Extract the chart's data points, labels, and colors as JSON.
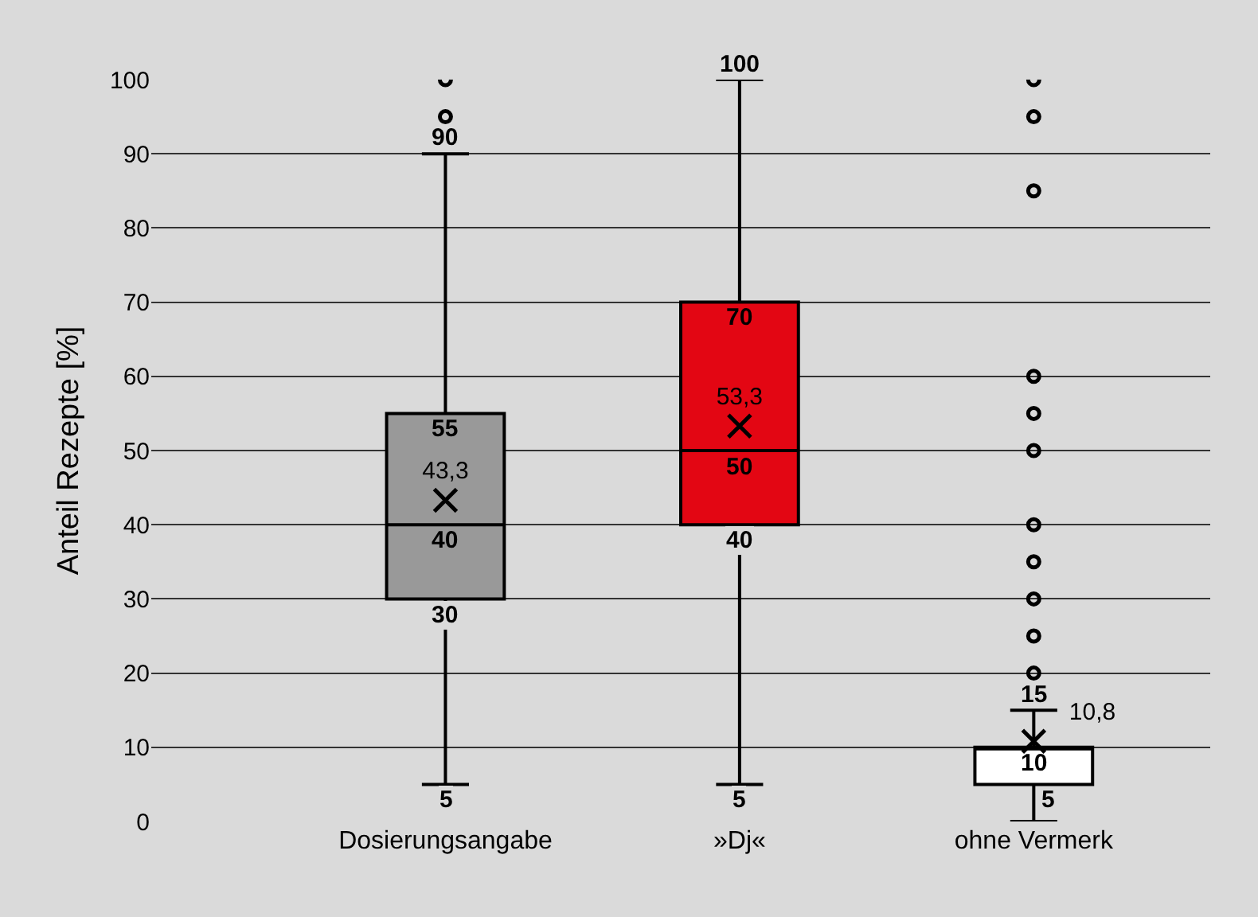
{
  "chart_data": {
    "type": "box",
    "ylabel": "Anteil Rezepte [%]",
    "categories": [
      "Dosierungsangabe",
      "»Dj«",
      "ohne Vermerk"
    ],
    "colors": [
      "#999999",
      "#e30613",
      "#ffffff"
    ],
    "boxes": [
      {
        "low": 5,
        "q1": 30,
        "median": 40,
        "q3": 55,
        "high": 90,
        "outliers": [
          95,
          100
        ]
      },
      {
        "low": 5,
        "q1": 40,
        "median": 50,
        "q3": 70,
        "high": 100
      },
      {
        "low": 0,
        "q1": 5,
        "median": 10,
        "q3": 10,
        "high": 15,
        "outliers": [
          20,
          25,
          30,
          35,
          40,
          50,
          55,
          60,
          85,
          95,
          100
        ]
      }
    ],
    "series": [
      {
        "type": "scatter",
        "marker": "cross",
        "color": "#000000",
        "x": [
          "Dosierungsangabe",
          "»Dj«",
          "ohne Vermerk"
        ],
        "values": [
          43.3,
          53.3,
          10.8
        ],
        "value_labels": [
          "43,3",
          "53,3",
          "10,8"
        ]
      }
    ],
    "ylim": [
      0,
      100
    ],
    "yticks": [
      0,
      10,
      20,
      30,
      40,
      50,
      60,
      70,
      80,
      90,
      100
    ],
    "grid": "y",
    "marker": "circle",
    "annotations": [
      {
        "text": "90",
        "x": "Dosierungsangabe",
        "y": 90
      },
      {
        "text": "55",
        "x": "Dosierungsangabe",
        "y": 55
      },
      {
        "text": "40",
        "x": "Dosierungsangabe",
        "y": 40
      },
      {
        "text": "30",
        "x": "Dosierungsangabe",
        "y": 30
      },
      {
        "text": "5",
        "x": "Dosierungsangabe",
        "y": 5
      },
      {
        "text": "100",
        "x": "»Dj«",
        "y": 100
      },
      {
        "text": "70",
        "x": "»Dj«",
        "y": 70
      },
      {
        "text": "50",
        "x": "»Dj«",
        "y": 50
      },
      {
        "text": "40",
        "x": "»Dj«",
        "y": 40
      },
      {
        "text": "5",
        "x": "»Dj«",
        "y": 5
      },
      {
        "text": "15",
        "x": "ohne Vermerk",
        "y": 15
      },
      {
        "text": "10",
        "x": "ohne Vermerk",
        "y": 10
      },
      {
        "text": "5",
        "x": "ohne Vermerk",
        "y": 5
      }
    ]
  }
}
